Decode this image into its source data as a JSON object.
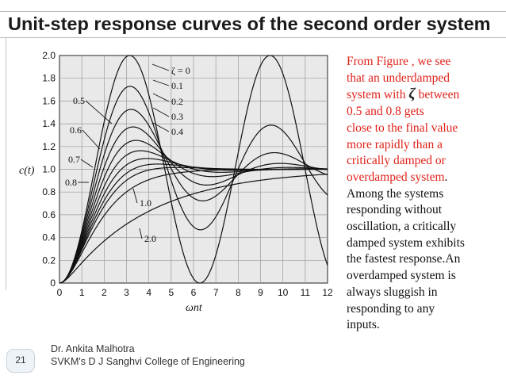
{
  "slide": {
    "title": "Unit-step response curves of the second order system",
    "page_number": "21",
    "footer_author": "Dr. Ankita Malhotra",
    "footer_college": "SVKM's D J Sanghvi College of Engineering"
  },
  "body_text": {
    "red_line_1": "From Figure , we see",
    "red_line_2": "that an underdamped",
    "red_line_3a": "system with",
    "zeta_symbol": "ζ",
    "red_line_3b": "between",
    "red_line_4": "0.5 and 0.8 gets",
    "red_line_5": "close to the final value",
    "red_line_6": "more rapidly than a",
    "red_line_7": "critically damped or",
    "red_line_8": "overdamped system",
    "black_period": ".",
    "black_line_1": "Among the systems",
    "black_line_2": "responding without",
    "black_line_3": "oscillation, a critically",
    "black_line_4": "damped system exhibits",
    "black_line_5": "the fastest response.An",
    "black_line_6": "overdamped system is",
    "black_line_7": "always sluggish in",
    "black_line_8": "responding to any",
    "black_line_9": "inputs."
  },
  "colors": {
    "red_text": "#e0221b",
    "plot_bg": "#e9e9e9",
    "curve": "#111111"
  },
  "chart_data": {
    "type": "line",
    "xlabel": "ωnt",
    "ylabel": "c(t)",
    "xlim": [
      0,
      12
    ],
    "ylim": [
      0,
      2.0
    ],
    "x_ticks": [
      "0",
      "1",
      "2",
      "3",
      "4",
      "5",
      "6",
      "7",
      "8",
      "9",
      "10",
      "11",
      "12"
    ],
    "y_ticks": [
      "0",
      "0.2",
      "0.4",
      "0.6",
      "0.8",
      "1.0",
      "1.2",
      "1.4",
      "1.6",
      "1.8",
      "2.0"
    ],
    "grid": true,
    "series": [
      {
        "zeta": 0,
        "name": "ζ = 0"
      },
      {
        "zeta": 0.1,
        "name": "0.1"
      },
      {
        "zeta": 0.2,
        "name": "0.2"
      },
      {
        "zeta": 0.3,
        "name": "0.3"
      },
      {
        "zeta": 0.4,
        "name": "0.4"
      },
      {
        "zeta": 0.5,
        "name": "0.5"
      },
      {
        "zeta": 0.6,
        "name": "0.6"
      },
      {
        "zeta": 0.7,
        "name": "0.7"
      },
      {
        "zeta": 0.8,
        "name": "0.8"
      },
      {
        "zeta": 1.0,
        "name": "1.0"
      },
      {
        "zeta": 2.0,
        "name": "2.0"
      }
    ]
  }
}
